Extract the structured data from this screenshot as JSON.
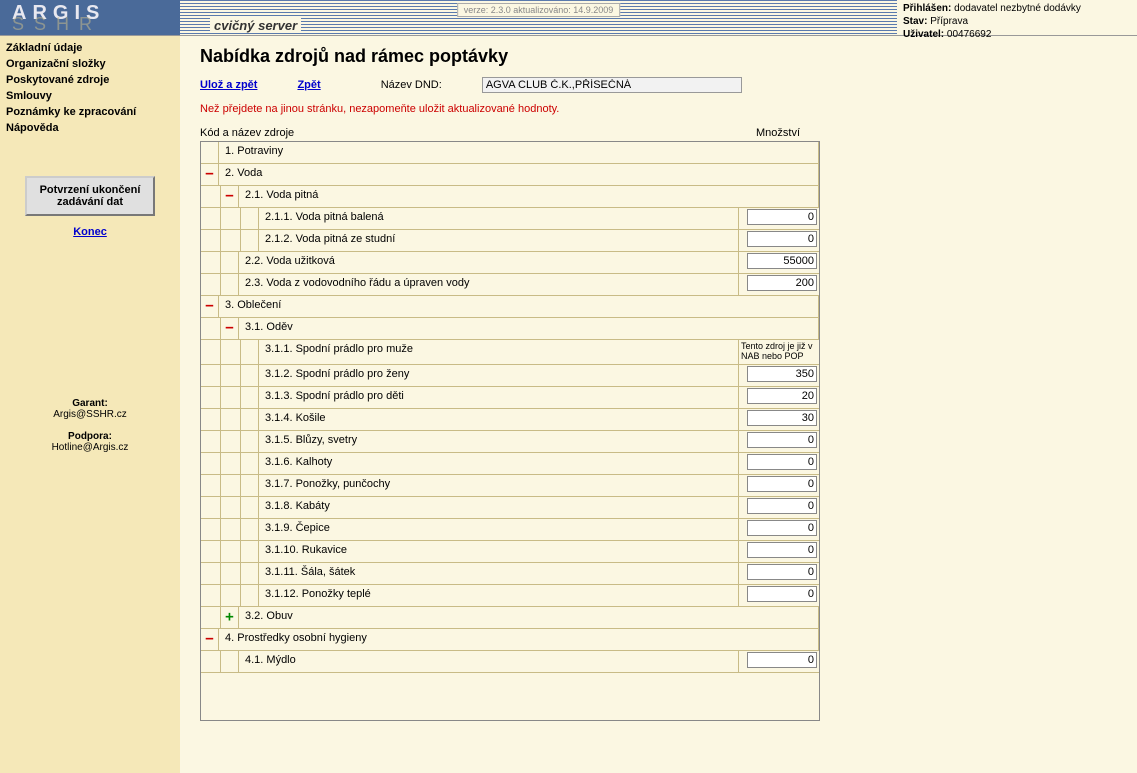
{
  "header": {
    "logo": "ARGIS",
    "logo_shadow": "SSHR",
    "version": "verze: 2.3.0 aktualizováno: 14.9.2009",
    "server_label": "cvičný server",
    "user": {
      "logged_label": "Přihlášen:",
      "logged_value": "dodavatel nezbytné dodávky",
      "state_label": "Stav:",
      "state_value": "Příprava",
      "user_label": "Uživatel:",
      "user_value": "00476692"
    }
  },
  "sidebar": {
    "nav": [
      "Základní údaje",
      "Organizační složky",
      "Poskytované zdroje",
      "Smlouvy",
      "Poznámky ke zpracování",
      "Nápověda"
    ],
    "button": "Potvrzení ukončení zadávání dat",
    "end_link": "Konec",
    "garant_label": "Garant:",
    "garant_value": "Argis@SSHR.cz",
    "support_label": "Podpora:",
    "support_value": "Hotline@Argis.cz"
  },
  "main": {
    "title": "Nabídka zdrojů nad rámec poptávky",
    "save_link": "Ulož a zpět",
    "back_link": "Zpět",
    "dnd_label": "Název DND:",
    "dnd_value": "AGVA CLUB Č.K.,PŘÍSEČNÁ",
    "warning": "Než přejdete na jinou stránku, nezapomeňte uložit aktualizované hodnoty.",
    "col_left": "Kód a název zdroje",
    "col_right": "Množství",
    "note_text": "Tento zdroj je již v NAB nebo POP"
  },
  "tree": [
    {
      "depth": 0,
      "toggle": "",
      "label": "1.  Potraviny"
    },
    {
      "depth": 0,
      "toggle": "minus",
      "label": "2.  Voda"
    },
    {
      "depth": 1,
      "toggle": "minus",
      "label": "2.1.  Voda pitná"
    },
    {
      "depth": 2,
      "toggle": "",
      "label": "2.1.1.  Voda pitná balená",
      "value": "0"
    },
    {
      "depth": 2,
      "toggle": "",
      "label": "2.1.2.  Voda pitná ze studní",
      "value": "0"
    },
    {
      "depth": 1,
      "toggle": "",
      "label": "2.2.  Voda užitková",
      "value": "55000"
    },
    {
      "depth": 1,
      "toggle": "",
      "label": "2.3.  Voda z vodovodního řádu a úpraven vody",
      "value": "200"
    },
    {
      "depth": 0,
      "toggle": "minus",
      "label": "3.  Oblečení"
    },
    {
      "depth": 1,
      "toggle": "minus",
      "label": "3.1.  Oděv"
    },
    {
      "depth": 2,
      "toggle": "",
      "label": "3.1.1.  Spodní prádlo pro muže",
      "note": true
    },
    {
      "depth": 2,
      "toggle": "",
      "label": "3.1.2.  Spodní prádlo pro ženy",
      "value": "350"
    },
    {
      "depth": 2,
      "toggle": "",
      "label": "3.1.3.  Spodní prádlo pro děti",
      "value": "20"
    },
    {
      "depth": 2,
      "toggle": "",
      "label": "3.1.4.  Košile",
      "value": "30"
    },
    {
      "depth": 2,
      "toggle": "",
      "label": "3.1.5.  Blůzy, svetry",
      "value": "0"
    },
    {
      "depth": 2,
      "toggle": "",
      "label": "3.1.6.  Kalhoty",
      "value": "0"
    },
    {
      "depth": 2,
      "toggle": "",
      "label": "3.1.7.  Ponožky, punčochy",
      "value": "0"
    },
    {
      "depth": 2,
      "toggle": "",
      "label": "3.1.8.  Kabáty",
      "value": "0"
    },
    {
      "depth": 2,
      "toggle": "",
      "label": "3.1.9.  Čepice",
      "value": "0"
    },
    {
      "depth": 2,
      "toggle": "",
      "label": "3.1.10.  Rukavice",
      "value": "0"
    },
    {
      "depth": 2,
      "toggle": "",
      "label": "3.1.11.  Šála, šátek",
      "value": "0"
    },
    {
      "depth": 2,
      "toggle": "",
      "label": "3.1.12.  Ponožky teplé",
      "value": "0"
    },
    {
      "depth": 1,
      "toggle": "plus",
      "label": "3.2.  Obuv"
    },
    {
      "depth": 0,
      "toggle": "minus",
      "label": "4.  Prostředky osobní hygieny"
    },
    {
      "depth": 1,
      "toggle": "",
      "label": "4.1.  Mýdlo",
      "value": "0"
    }
  ]
}
